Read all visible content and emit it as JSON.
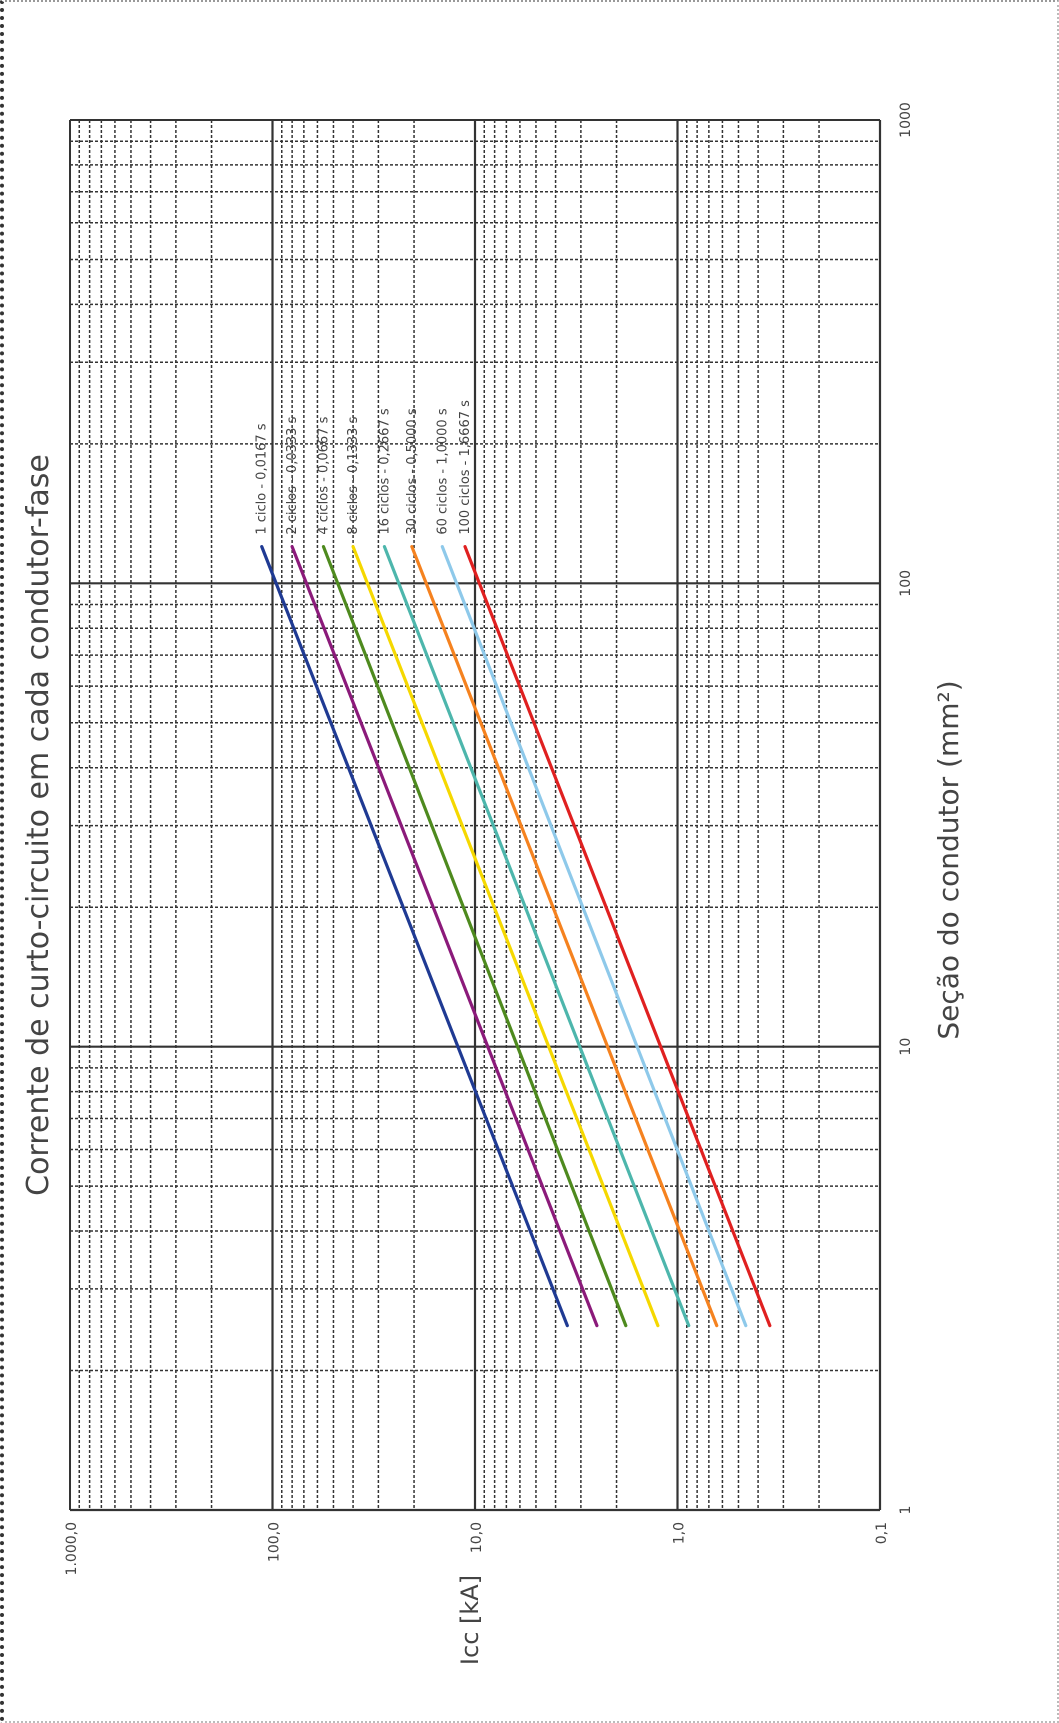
{
  "chart_data": {
    "type": "line",
    "title": "Corrente de curto-circuito em cada condutor-fase",
    "xlabel": "Seção do condutor (mm²)",
    "ylabel": "Icc [kA]",
    "x_scale": "log",
    "y_scale": "log",
    "xlim": [
      1,
      1000
    ],
    "ylim": [
      0.1,
      1000
    ],
    "x_ticks": [
      "1",
      "10",
      "100",
      "1000"
    ],
    "y_ticks": [
      "0,1",
      "1,0",
      "10,0",
      "100,0",
      "1.000,0"
    ],
    "grid": true,
    "legend_placement": "inline, near the end of each line",
    "orientation": "rotated 90° counter-clockwise",
    "series": [
      {
        "name": "1 ciclo - 0,0167 s",
        "color": "#1f3a93",
        "x": [
          2.5,
          120
        ],
        "y": [
          3.5,
          113
        ]
      },
      {
        "name": "2 ciclos - 0,0333 s",
        "color": "#8b1a7a",
        "x": [
          2.5,
          120
        ],
        "y": [
          2.5,
          80
        ]
      },
      {
        "name": "4 ciclos - 0,0667 s",
        "color": "#4e8a1e",
        "x": [
          2.5,
          120
        ],
        "y": [
          1.8,
          56
        ]
      },
      {
        "name": "8 ciclos - 0,1333 s",
        "color": "#f5d800",
        "x": [
          2.5,
          120
        ],
        "y": [
          1.25,
          40
        ]
      },
      {
        "name": "16 ciclos - 0,2667 s",
        "color": "#4db6ac",
        "x": [
          2.5,
          120
        ],
        "y": [
          0.88,
          28
        ]
      },
      {
        "name": "30 ciclos - 0,5000 s",
        "color": "#f5821f",
        "x": [
          2.5,
          120
        ],
        "y": [
          0.64,
          20.5
        ]
      },
      {
        "name": "60 ciclos - 1,0000 s",
        "color": "#8ec9ea",
        "x": [
          2.5,
          120
        ],
        "y": [
          0.46,
          14.5
        ]
      },
      {
        "name": "100 ciclos - 1,6667 s",
        "color": "#e02020",
        "x": [
          2.5,
          120
        ],
        "y": [
          0.35,
          11.2
        ]
      }
    ]
  }
}
